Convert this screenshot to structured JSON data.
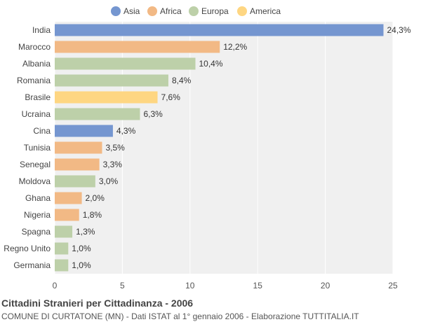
{
  "chart_data": {
    "type": "bar",
    "orientation": "horizontal",
    "title": "Cittadini Stranieri per Cittadinanza - 2006",
    "subtitle": "COMUNE DI CURTATONE (MN) - Dati ISTAT al 1° gennaio 2006 - Elaborazione TUTTITALIA.IT",
    "legend": {
      "position": "top",
      "items": [
        {
          "name": "Asia",
          "color": "#7596d0"
        },
        {
          "name": "Africa",
          "color": "#f2b985"
        },
        {
          "name": "Europa",
          "color": "#bdd0a9"
        },
        {
          "name": "America",
          "color": "#fed682"
        }
      ]
    },
    "categories": [
      "India",
      "Marocco",
      "Albania",
      "Romania",
      "Brasile",
      "Ucraina",
      "Cina",
      "Tunisia",
      "Senegal",
      "Moldova",
      "Ghana",
      "Nigeria",
      "Spagna",
      "Regno Unito",
      "Germania"
    ],
    "values": [
      24.3,
      12.2,
      10.4,
      8.4,
      7.6,
      6.3,
      4.3,
      3.5,
      3.3,
      3.0,
      2.0,
      1.8,
      1.3,
      1.0,
      1.0
    ],
    "value_labels": [
      "24,3%",
      "12,2%",
      "10,4%",
      "8,4%",
      "7,6%",
      "6,3%",
      "4,3%",
      "3,5%",
      "3,3%",
      "3,0%",
      "2,0%",
      "1,8%",
      "1,3%",
      "1,0%",
      "1,0%"
    ],
    "groups": [
      "Asia",
      "Africa",
      "Europa",
      "Europa",
      "America",
      "Europa",
      "Asia",
      "Africa",
      "Africa",
      "Europa",
      "Africa",
      "Africa",
      "Europa",
      "Europa",
      "Europa"
    ],
    "xlim": [
      0,
      25
    ],
    "xticks": [
      0,
      5,
      10,
      15,
      20,
      25
    ],
    "grid": true,
    "background": "#f0f0f0",
    "grid_color": "#ffffff"
  }
}
